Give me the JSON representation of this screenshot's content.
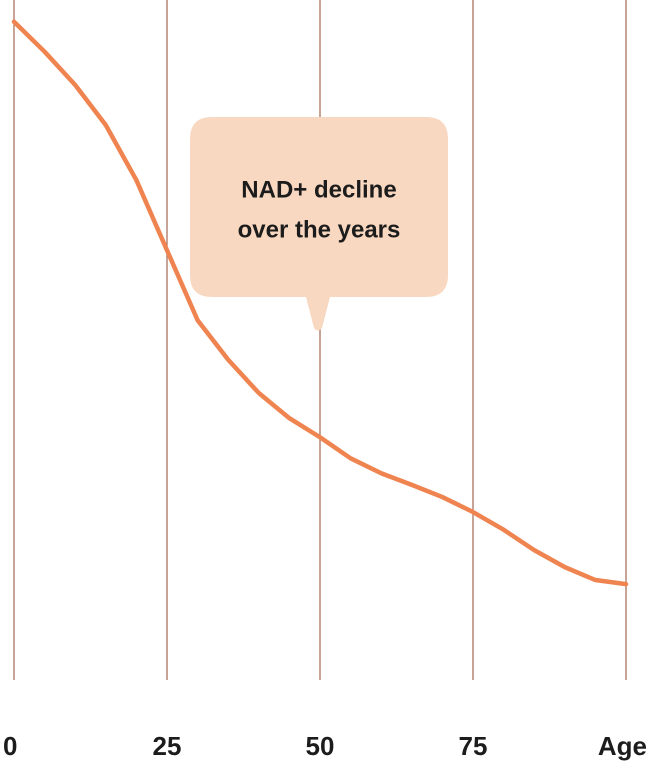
{
  "chart_data": {
    "type": "line",
    "x": [
      0,
      5,
      10,
      15,
      20,
      25,
      30,
      35,
      40,
      45,
      50,
      55,
      60,
      65,
      70,
      75,
      80,
      85,
      90,
      95,
      100
    ],
    "series": [
      {
        "color": "#ef8450",
        "values": [
          96.8,
          92.4,
          87.5,
          81.6,
          73.5,
          63.2,
          52.9,
          47.1,
          42.2,
          38.5,
          35.7,
          32.6,
          30.4,
          28.7,
          26.9,
          24.7,
          22.1,
          19.1,
          16.6,
          14.7,
          14.1
        ]
      }
    ],
    "xlim": [
      0,
      100
    ],
    "ylim": [
      0,
      100
    ],
    "xticks": [
      0,
      25,
      50,
      75,
      {
        "value": 100,
        "label": "Age"
      }
    ],
    "grid": true,
    "grid_color": "#a9735f",
    "annotation": [
      "NAD+ decline",
      "over the years"
    ],
    "annotation_color": "#f9d8c1"
  }
}
